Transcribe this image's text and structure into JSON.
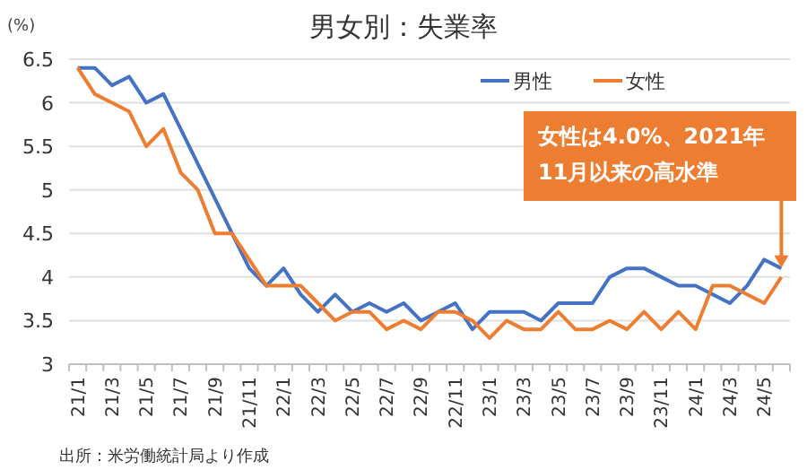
{
  "chart_data": {
    "type": "line",
    "title": "男女別：失業率",
    "ylabel": "(%)",
    "categories": [
      "21/1",
      null,
      "21/3",
      null,
      "21/5",
      null,
      "21/7",
      null,
      "21/9",
      null,
      "21/11",
      null,
      "22/1",
      null,
      "22/3",
      null,
      "22/5",
      null,
      "22/7",
      null,
      "22/9",
      null,
      "22/11",
      null,
      "23/1",
      null,
      "23/3",
      null,
      "23/5",
      null,
      "23/7",
      null,
      "23/9",
      null,
      "23/11",
      null,
      "24/1",
      null,
      "24/3",
      null,
      "24/5",
      null
    ],
    "series": [
      {
        "name": "男性",
        "color": "#4472c4",
        "values": [
          6.4,
          6.4,
          6.2,
          6.3,
          6.0,
          6.1,
          5.7,
          5.3,
          4.9,
          4.5,
          4.1,
          3.9,
          4.1,
          3.8,
          3.6,
          3.8,
          3.6,
          3.7,
          3.6,
          3.7,
          3.5,
          3.6,
          3.7,
          3.4,
          3.6,
          3.6,
          3.6,
          3.5,
          3.7,
          3.7,
          3.7,
          4.0,
          4.1,
          4.1,
          4.0,
          3.9,
          3.9,
          3.8,
          3.7,
          3.9,
          4.2,
          4.1
        ]
      },
      {
        "name": "女性",
        "color": "#ed7d31",
        "values": [
          6.4,
          6.1,
          6.0,
          5.9,
          5.5,
          5.7,
          5.2,
          5.0,
          4.5,
          4.5,
          4.2,
          3.9,
          3.9,
          3.9,
          3.7,
          3.5,
          3.6,
          3.6,
          3.4,
          3.5,
          3.4,
          3.6,
          3.6,
          3.5,
          3.3,
          3.5,
          3.4,
          3.4,
          3.6,
          3.4,
          3.4,
          3.5,
          3.4,
          3.6,
          3.4,
          3.6,
          3.4,
          3.9,
          3.9,
          3.8,
          3.7,
          4.0
        ]
      }
    ],
    "ylim": [
      3,
      6.5
    ],
    "yticks": [
      3,
      3.5,
      4,
      4.5,
      5,
      5.5,
      6,
      6.5
    ],
    "grid": "y",
    "legend": "top right",
    "marker": "none",
    "line_style": "solid",
    "annotations": [
      "女性は4.0%、2021年\n11月以来の高水準",
      "出所：米労働統計局より作成"
    ]
  }
}
